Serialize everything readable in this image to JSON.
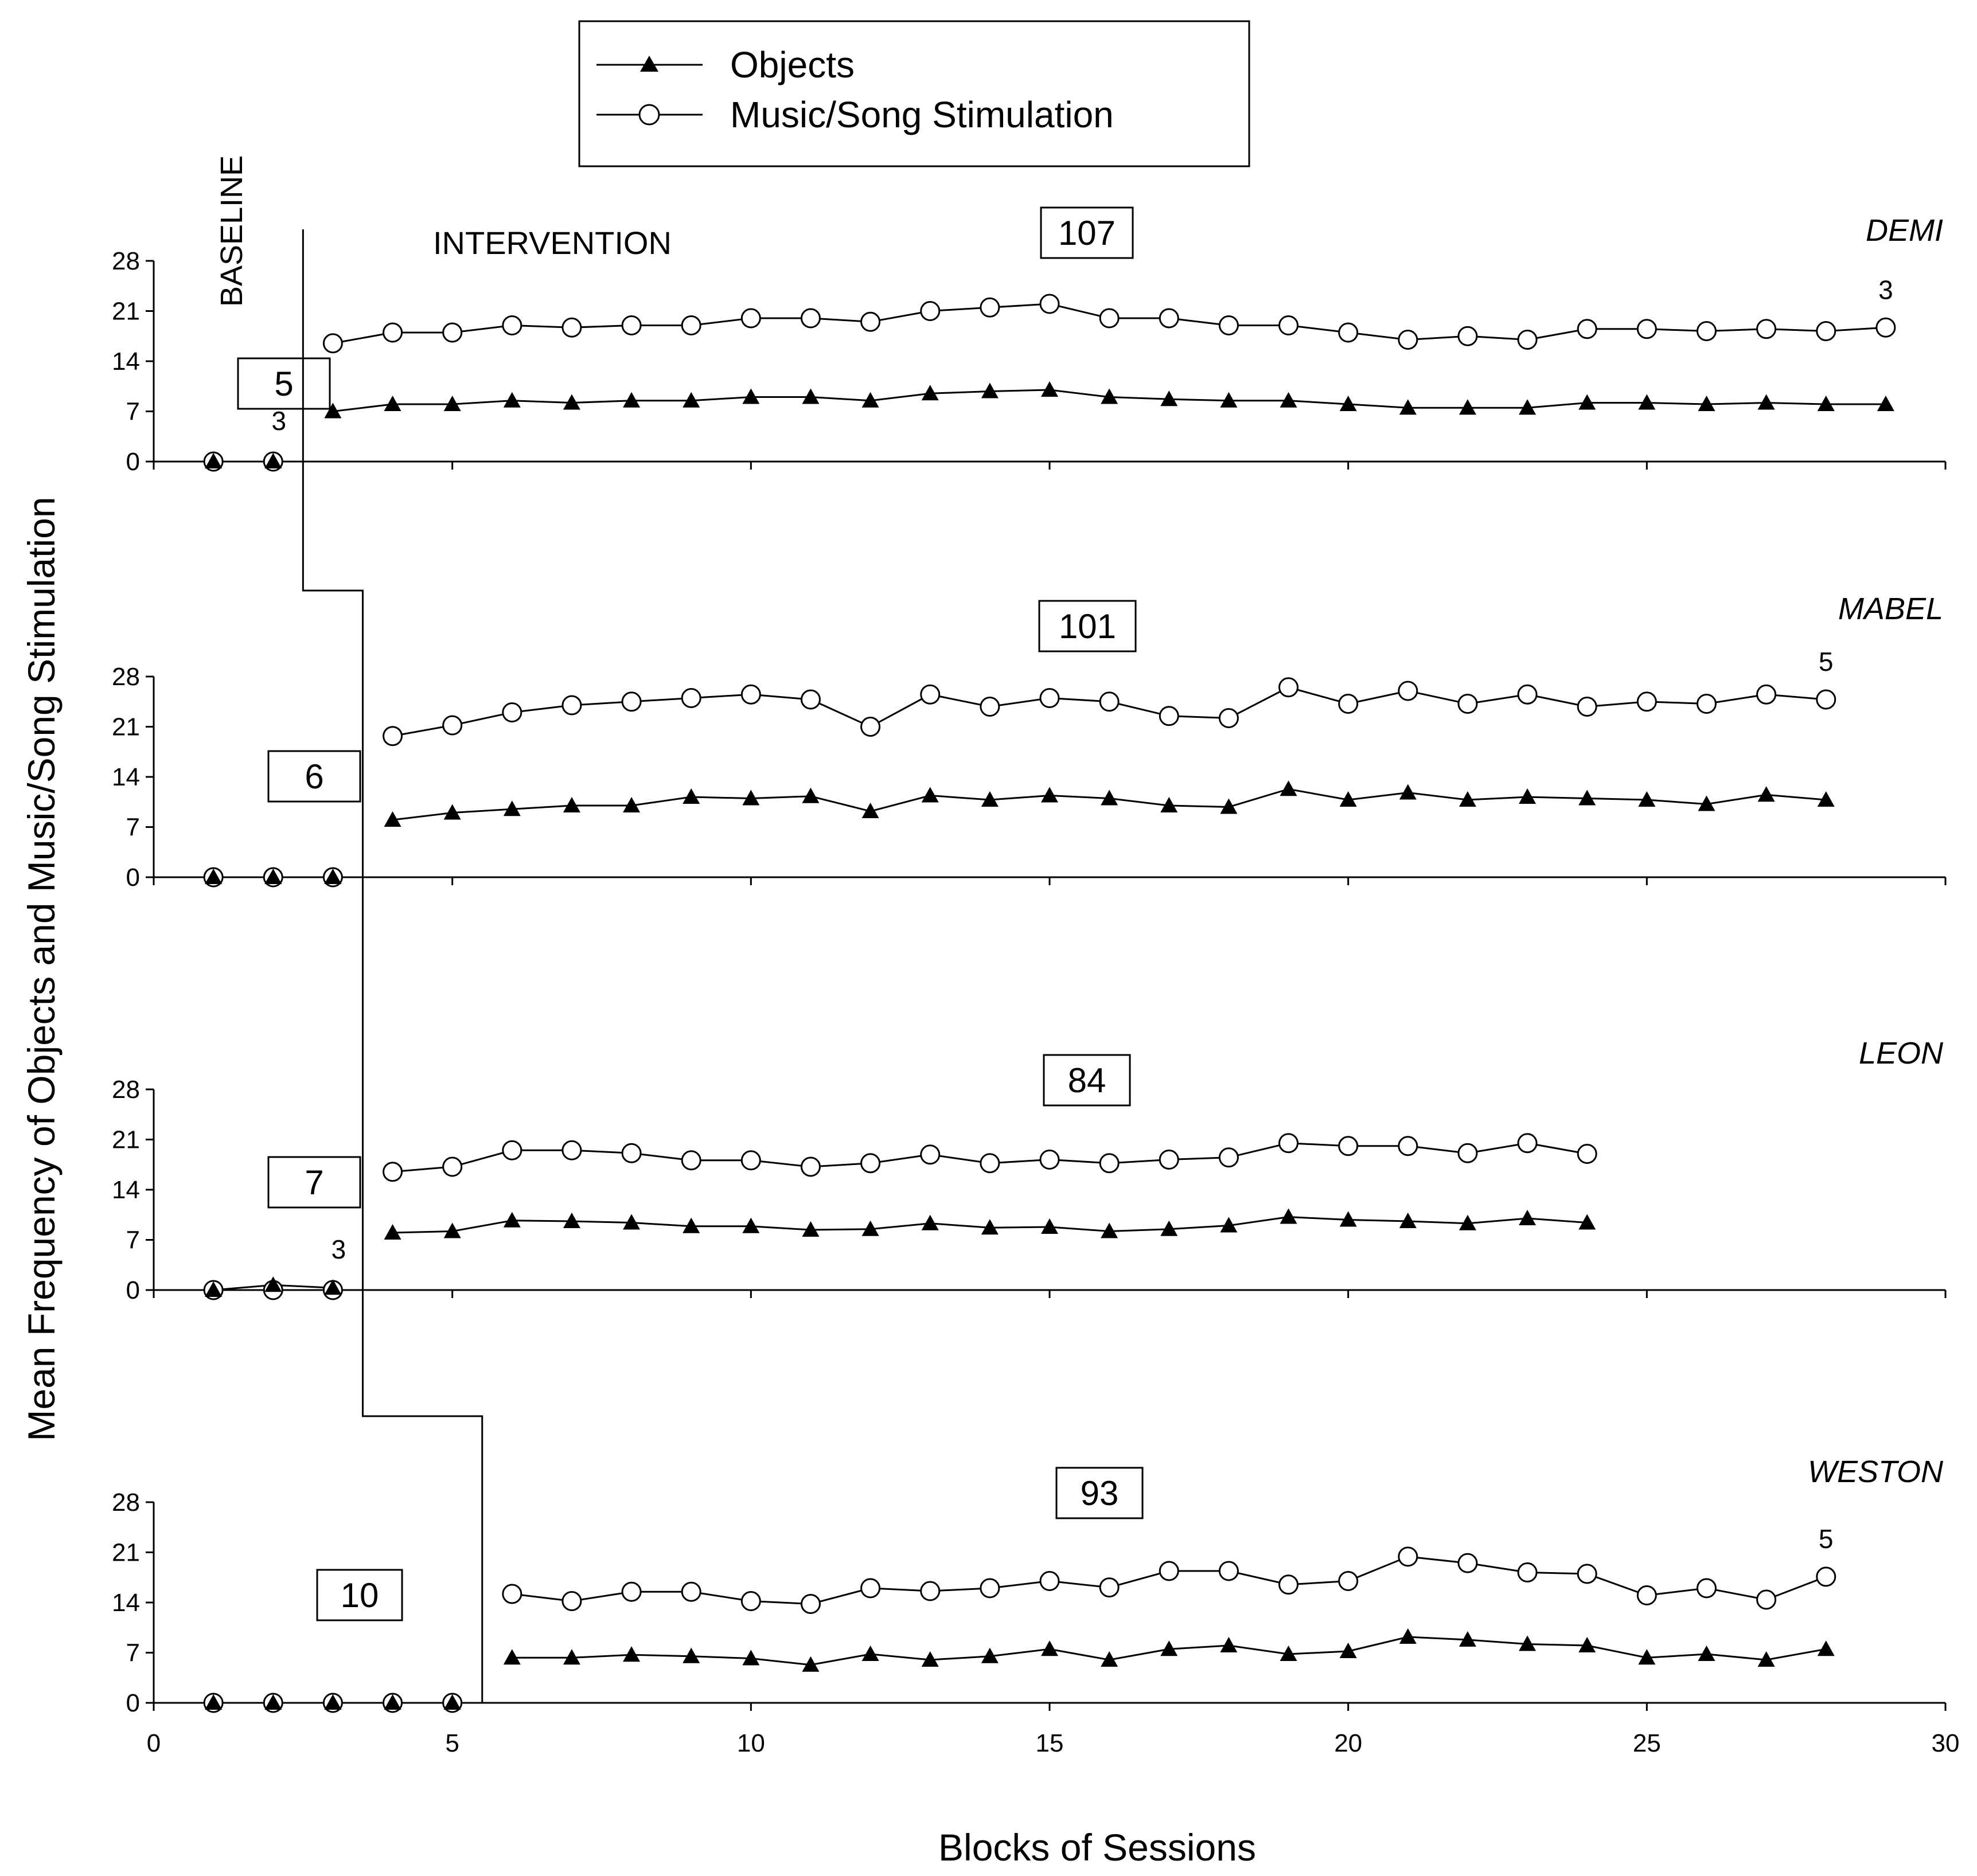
{
  "chart_data": {
    "type": "line",
    "xlabel": "Blocks of Sessions",
    "ylabel": "Mean Frequency of Objects and Music/Song Stimulation",
    "xlim": [
      0,
      30
    ],
    "xticks": [
      0,
      5,
      10,
      15,
      20,
      25,
      30
    ],
    "ylim": [
      0,
      28
    ],
    "yticks": [
      0,
      7,
      14,
      21,
      28
    ],
    "legend": {
      "position": "top-center",
      "entries": [
        "Objects",
        "Music/Song Stimulation"
      ]
    },
    "phase_labels": {
      "baseline": "BASELINE",
      "intervention": "INTERVENTION"
    },
    "panels": [
      {
        "name": "DEMI",
        "baseline_box": "5",
        "intervention_box": "107",
        "baseline_note": "3",
        "end_note": "3",
        "phase_change_after": 2,
        "series": [
          {
            "name": "Objects",
            "marker": "triangle",
            "x": [
              1,
              2,
              3,
              4,
              5,
              6,
              7,
              8,
              9,
              10,
              11,
              12,
              13,
              14,
              15,
              16,
              17,
              18,
              19,
              20,
              21,
              22,
              23,
              24,
              25,
              26,
              27,
              28,
              29
            ],
            "y": [
              0,
              0,
              7,
              8,
              8,
              8.5,
              8.2,
              8.5,
              8.5,
              9,
              9,
              8.5,
              9.5,
              9.8,
              10,
              9,
              8.7,
              8.5,
              8.5,
              8,
              7.5,
              7.5,
              7.5,
              8.2,
              8.2,
              8,
              8.2,
              8,
              8
            ]
          },
          {
            "name": "Music/Song Stimulation",
            "marker": "circle",
            "x": [
              1,
              2,
              3,
              4,
              5,
              6,
              7,
              8,
              9,
              10,
              11,
              12,
              13,
              14,
              15,
              16,
              17,
              18,
              19,
              20,
              21,
              22,
              23,
              24,
              25,
              26,
              27,
              28,
              29
            ],
            "y": [
              0,
              0,
              16.5,
              18,
              18,
              19,
              18.7,
              19,
              19,
              20,
              20,
              19.5,
              21,
              21.5,
              22,
              20,
              20,
              19,
              19,
              18,
              17,
              17.5,
              17,
              18.5,
              18.5,
              18.2,
              18.5,
              18.2,
              18.7
            ]
          }
        ]
      },
      {
        "name": "MABEL",
        "baseline_box": "6",
        "intervention_box": "101",
        "end_note": "5",
        "phase_change_after": 3,
        "series": [
          {
            "name": "Objects",
            "marker": "triangle",
            "x": [
              1,
              2,
              3,
              4,
              5,
              6,
              7,
              8,
              9,
              10,
              11,
              12,
              13,
              14,
              15,
              16,
              17,
              18,
              19,
              20,
              21,
              22,
              23,
              24,
              25,
              26,
              27,
              28
            ],
            "y": [
              0,
              0,
              0,
              8,
              9,
              9.5,
              10,
              10,
              11.2,
              11,
              11.3,
              9.2,
              11.4,
              10.8,
              11.4,
              11,
              10,
              9.8,
              12.3,
              10.8,
              11.8,
              10.8,
              11.2,
              11,
              10.8,
              10.2,
              11.5,
              10.8
            ]
          },
          {
            "name": "Music/Song Stimulation",
            "marker": "circle",
            "x": [
              1,
              2,
              3,
              4,
              5,
              6,
              7,
              8,
              9,
              10,
              11,
              12,
              13,
              14,
              15,
              16,
              17,
              18,
              19,
              20,
              21,
              22,
              23,
              24,
              25,
              26,
              27,
              28
            ],
            "y": [
              0,
              0,
              0,
              19.7,
              21.2,
              23,
              24,
              24.5,
              25,
              25.5,
              24.8,
              21,
              25.5,
              23.8,
              25,
              24.5,
              22.5,
              22.2,
              26.5,
              24.2,
              26,
              24.2,
              25.5,
              23.8,
              24.5,
              24.2,
              25.5,
              24.8
            ]
          }
        ]
      },
      {
        "name": "LEON",
        "baseline_box": "7",
        "intervention_box": "84",
        "baseline_note": "3",
        "phase_change_after": 3,
        "series": [
          {
            "name": "Objects",
            "marker": "triangle",
            "x": [
              1,
              2,
              3,
              4,
              5,
              6,
              7,
              8,
              9,
              10,
              11,
              12,
              13,
              14,
              15,
              16,
              17,
              18,
              19,
              20,
              21,
              22,
              23,
              24
            ],
            "y": [
              0,
              0.7,
              0.3,
              8,
              8.2,
              9.7,
              9.6,
              9.4,
              8.9,
              8.9,
              8.4,
              8.5,
              9.3,
              8.7,
              8.8,
              8.2,
              8.5,
              9,
              10.2,
              9.8,
              9.6,
              9.3,
              10,
              9.4
            ]
          },
          {
            "name": "Music/Song Stimulation",
            "marker": "circle",
            "x": [
              1,
              2,
              3,
              4,
              5,
              6,
              7,
              8,
              9,
              10,
              11,
              12,
              13,
              14,
              15,
              16,
              17,
              18,
              19,
              20,
              21,
              22,
              23,
              24
            ],
            "y": [
              0,
              0,
              0,
              16.5,
              17.2,
              19.5,
              19.5,
              19.1,
              18.1,
              18.1,
              17.2,
              17.7,
              18.9,
              17.7,
              18.2,
              17.7,
              18.2,
              18.5,
              20.5,
              20.1,
              20.1,
              19.1,
              20.5,
              19
            ]
          }
        ]
      },
      {
        "name": "WESTON",
        "baseline_box": "10",
        "intervention_box": "93",
        "end_note": "5",
        "phase_change_after": 5,
        "series": [
          {
            "name": "Objects",
            "marker": "triangle",
            "x": [
              1,
              2,
              3,
              4,
              5,
              6,
              7,
              8,
              9,
              10,
              11,
              12,
              13,
              14,
              15,
              16,
              17,
              18,
              19,
              20,
              21,
              22,
              23,
              24,
              25,
              26,
              27,
              28
            ],
            "y": [
              0,
              0,
              0,
              0,
              0,
              6.3,
              6.3,
              6.7,
              6.5,
              6.2,
              5.3,
              6.8,
              6,
              6.5,
              7.5,
              6,
              7.5,
              8,
              6.8,
              7.2,
              9.2,
              8.8,
              8.2,
              8,
              6.3,
              6.8,
              6,
              7.5
            ]
          },
          {
            "name": "Music/Song Stimulation",
            "marker": "circle",
            "x": [
              1,
              2,
              3,
              4,
              5,
              6,
              7,
              8,
              9,
              10,
              11,
              12,
              13,
              14,
              15,
              16,
              17,
              18,
              19,
              20,
              21,
              22,
              23,
              24,
              25,
              26,
              27,
              28
            ],
            "y": [
              0,
              0,
              0,
              0,
              0,
              15.2,
              14.2,
              15.5,
              15.5,
              14.2,
              13.8,
              16,
              15.6,
              16,
              17,
              16.1,
              18.4,
              18.4,
              16.5,
              17,
              20.4,
              19.5,
              18.2,
              18,
              15,
              16,
              14.4,
              17.6
            ]
          }
        ]
      }
    ]
  }
}
